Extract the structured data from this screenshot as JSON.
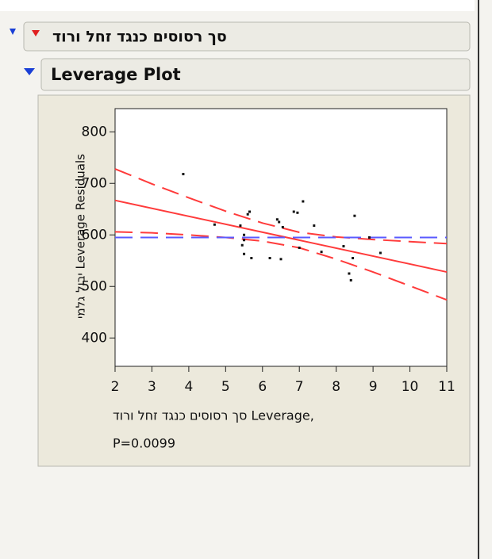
{
  "ui": {
    "panel_title": "סך רסוסים כנגד זחל ורוד",
    "section_title": "Leverage Plot"
  },
  "chart_data": {
    "type": "scatter",
    "y_label": "יבול גלמי Leverage Residuals",
    "x_label": "סך רסוסים כנגד זחל ורוד Leverage,",
    "p_value_label": "P=0.0099",
    "xlim": [
      2,
      11
    ],
    "xticks": [
      2,
      3,
      4,
      5,
      6,
      7,
      8,
      9,
      10,
      11
    ],
    "ylim": [
      345,
      845
    ],
    "yticks": [
      400,
      500,
      600,
      700,
      800
    ],
    "series": [
      {
        "type": "scatter",
        "color": "#111111",
        "x": [
          3.85,
          4.7,
          5.4,
          5.45,
          5.5,
          5.5,
          5.5,
          5.6,
          5.65,
          5.7,
          6.2,
          6.4,
          6.45,
          6.5,
          6.55,
          6.85,
          6.95,
          7.0,
          7.1,
          7.4,
          7.6,
          8.2,
          8.35,
          8.4,
          8.45,
          8.5,
          8.9,
          9.2
        ],
        "values": [
          718,
          620,
          618,
          580,
          590,
          563,
          600,
          640,
          645,
          555,
          555,
          630,
          625,
          553,
          615,
          645,
          643,
          575,
          665,
          618,
          567,
          578,
          525,
          512,
          555,
          637,
          595,
          565
        ]
      },
      {
        "type": "line",
        "color": "#ff3b3b",
        "dashed": false,
        "x": [
          2,
          11
        ],
        "values": [
          667,
          528
        ]
      },
      {
        "type": "line",
        "color": "#ff3b3b",
        "dashed": true,
        "x": [
          2,
          3,
          4,
          5,
          6,
          7,
          8,
          9,
          10,
          11
        ],
        "values": [
          728,
          699,
          672,
          646,
          623,
          605,
          596,
          591,
          587,
          583
        ]
      },
      {
        "type": "line",
        "color": "#ff3b3b",
        "dashed": true,
        "x": [
          2,
          3,
          4,
          5,
          6,
          7,
          8,
          9,
          10,
          11
        ],
        "values": [
          606,
          604,
          600,
          595,
          588,
          575,
          553,
          528,
          501,
          474
        ]
      },
      {
        "type": "line",
        "color": "#5a5aff",
        "dashed": true,
        "x": [
          2,
          11
        ],
        "values": [
          595,
          595
        ]
      }
    ]
  }
}
